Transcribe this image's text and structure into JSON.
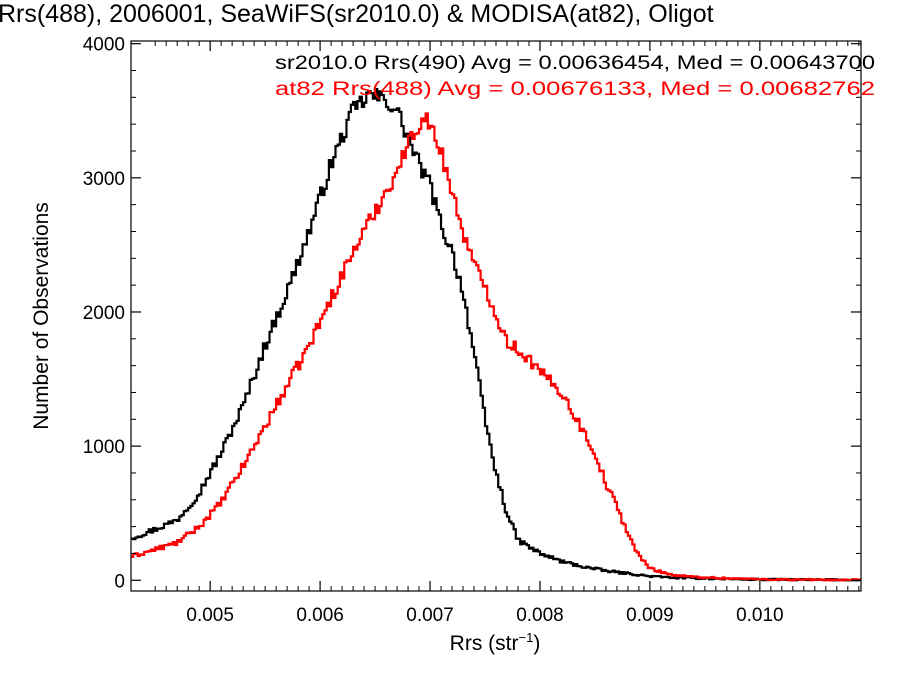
{
  "chart_data": {
    "type": "histogram",
    "title": "Rrs(488), 2006001, SeaWiFS(sr2010.0) & MODISA(at82), Oligot",
    "xlabel": "Rrs (str",
    "xlabel_superscript": "−1",
    "xlabel_close": ")",
    "ylabel": "Number of Observations",
    "xlim": [
      0.00428,
      0.01092
    ],
    "ylim": [
      -80,
      4020
    ],
    "xticks": [
      {
        "value": 0.005,
        "label": "0.005"
      },
      {
        "value": 0.006,
        "label": "0.006"
      },
      {
        "value": 0.007,
        "label": "0.007"
      },
      {
        "value": 0.008,
        "label": "0.008"
      },
      {
        "value": 0.009,
        "label": "0.009"
      },
      {
        "value": 0.01,
        "label": "0.010"
      }
    ],
    "yticks": [
      {
        "value": 0,
        "label": "0"
      },
      {
        "value": 1000,
        "label": "1000"
      },
      {
        "value": 2000,
        "label": "2000"
      },
      {
        "value": 3000,
        "label": "3000"
      },
      {
        "value": 4000,
        "label": "4000"
      }
    ],
    "grid": false,
    "legend_position": "top-right",
    "series": [
      {
        "legend": "sr2010.0 Rrs(490) Avg = 0.00636454, Med = 0.00643700",
        "color": "#000000",
        "x": [
          0.0043,
          0.0045,
          0.0047,
          0.0049,
          0.0051,
          0.0053,
          0.0055,
          0.0057,
          0.0059,
          0.0061,
          0.0062,
          0.0063,
          0.00645,
          0.0066,
          0.0067,
          0.0068,
          0.0069,
          0.007,
          0.0071,
          0.0072,
          0.0073,
          0.0074,
          0.0075,
          0.0076,
          0.0077,
          0.0078,
          0.008,
          0.0082,
          0.0084,
          0.0086,
          0.0088,
          0.009,
          0.0092,
          0.0094,
          0.0097,
          0.01,
          0.0103,
          0.0106,
          0.0109
        ],
        "values": [
          320,
          380,
          450,
          650,
          950,
          1300,
          1750,
          2150,
          2600,
          3100,
          3300,
          3500,
          3620,
          3580,
          3500,
          3300,
          3100,
          2950,
          2650,
          2450,
          2150,
          1700,
          1200,
          800,
          500,
          300,
          200,
          140,
          100,
          70,
          50,
          30,
          20,
          15,
          10,
          6,
          4,
          3,
          2
        ]
      },
      {
        "legend": "at82 Rrs(488) Avg = 0.00676133, Med = 0.00682762",
        "color": "#ff0000",
        "x": [
          0.0043,
          0.0045,
          0.0047,
          0.0049,
          0.0051,
          0.0053,
          0.0055,
          0.0057,
          0.0059,
          0.0061,
          0.0063,
          0.0065,
          0.0067,
          0.0068,
          0.0069,
          0.00695,
          0.007,
          0.0071,
          0.0072,
          0.0073,
          0.0074,
          0.0075,
          0.0076,
          0.0077,
          0.0078,
          0.0079,
          0.008,
          0.0081,
          0.0082,
          0.0083,
          0.0084,
          0.0085,
          0.0086,
          0.0087,
          0.0088,
          0.0089,
          0.009,
          0.0092,
          0.0094,
          0.0097,
          0.01,
          0.0103,
          0.0106,
          0.0109
        ],
        "values": [
          180,
          230,
          280,
          400,
          580,
          850,
          1150,
          1450,
          1750,
          2100,
          2450,
          2750,
          3050,
          3250,
          3400,
          3480,
          3380,
          3200,
          2900,
          2600,
          2350,
          2200,
          1980,
          1780,
          1720,
          1650,
          1550,
          1480,
          1400,
          1250,
          1100,
          950,
          720,
          550,
          350,
          180,
          90,
          40,
          25,
          15,
          8,
          5,
          3,
          2
        ]
      }
    ]
  }
}
